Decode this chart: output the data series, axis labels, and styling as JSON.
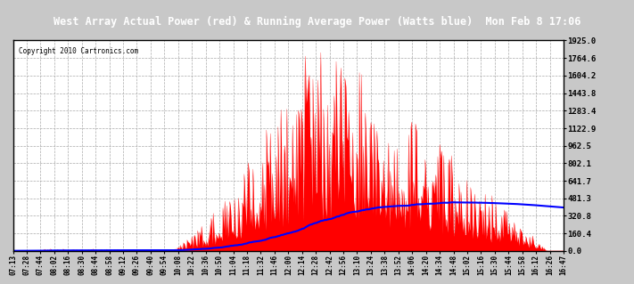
{
  "title": "West Array Actual Power (red) & Running Average Power (Watts blue)  Mon Feb 8 17:06",
  "copyright": "Copyright 2010 Cartronics.com",
  "ylim": [
    0.0,
    1925.0
  ],
  "yticks": [
    0.0,
    160.4,
    320.8,
    481.3,
    641.7,
    802.1,
    962.5,
    1122.9,
    1283.4,
    1443.8,
    1604.2,
    1764.6,
    1925.0
  ],
  "ytick_labels": [
    "0.0",
    "160.4",
    "320.8",
    "481.3",
    "641.7",
    "802.1",
    "962.5",
    "1122.9",
    "1283.4",
    "1443.8",
    "1604.2",
    "1764.6",
    "1925.0"
  ],
  "x_labels": [
    "07:13",
    "07:28",
    "07:44",
    "08:02",
    "08:16",
    "08:30",
    "08:44",
    "08:58",
    "09:12",
    "09:26",
    "09:40",
    "09:54",
    "10:08",
    "10:22",
    "10:36",
    "10:50",
    "11:04",
    "11:18",
    "11:32",
    "11:46",
    "12:00",
    "12:14",
    "12:28",
    "12:42",
    "12:56",
    "13:10",
    "13:24",
    "13:38",
    "13:52",
    "14:06",
    "14:20",
    "14:34",
    "14:48",
    "15:02",
    "15:16",
    "15:30",
    "15:44",
    "15:58",
    "16:12",
    "16:26",
    "16:47"
  ],
  "title_bg": "#000000",
  "title_fg": "#ffffff",
  "plot_bg": "#ffffff",
  "fig_bg": "#c8c8c8",
  "border_color": "#000000",
  "grid_color": "#aaaaaa",
  "red_color": "#ff0000",
  "blue_color": "#0000ff"
}
